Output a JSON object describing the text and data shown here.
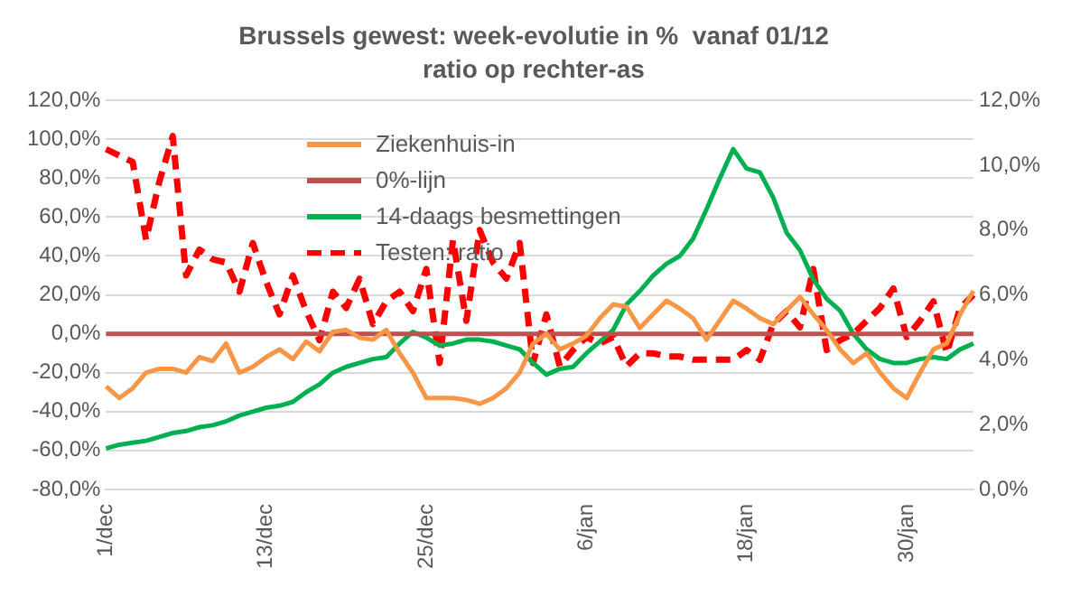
{
  "chart_data": {
    "type": "line",
    "title": "Brussels gewest: week-evolutie in %  vanaf 01/12",
    "subtitle": "ratio op rechter-as",
    "categories": [
      "1/dec",
      null,
      null,
      null,
      null,
      null,
      null,
      null,
      null,
      null,
      null,
      null,
      "13/dec",
      null,
      null,
      null,
      null,
      null,
      null,
      null,
      null,
      null,
      null,
      null,
      "25/dec",
      null,
      null,
      null,
      null,
      null,
      null,
      null,
      null,
      null,
      null,
      null,
      "6/jan",
      null,
      null,
      null,
      null,
      null,
      null,
      null,
      null,
      null,
      null,
      null,
      "18/jan",
      null,
      null,
      null,
      null,
      null,
      null,
      null,
      null,
      null,
      null,
      null,
      "30/jan",
      null,
      null,
      null,
      null,
      null
    ],
    "series": [
      {
        "name": "Ziekenhuis-in",
        "color": "#f79646",
        "line_style": "solid",
        "values": [
          -27,
          -33,
          -28,
          -20,
          -18,
          -18,
          -20,
          -12,
          -14,
          -5,
          -20,
          -17,
          -12,
          -8,
          -13,
          -4,
          -9,
          1,
          2,
          -2,
          -3,
          2,
          -10,
          -20,
          -33,
          -33,
          -33,
          -34,
          -36,
          -33,
          -28,
          -20,
          -5,
          0,
          -8,
          -5,
          -1,
          8,
          15,
          14,
          3,
          10,
          17,
          13,
          8,
          -3,
          7,
          17,
          13,
          8,
          5,
          12,
          19,
          10,
          2,
          -8,
          -15,
          -10,
          -20,
          -28,
          -33,
          -20,
          -8,
          -5,
          10,
          22
        ]
      },
      {
        "name": "0%-lijn",
        "color": "#c0504d",
        "line_style": "solid",
        "values": [
          0,
          0,
          0,
          0,
          0,
          0,
          0,
          0,
          0,
          0,
          0,
          0,
          0,
          0,
          0,
          0,
          0,
          0,
          0,
          0,
          0,
          0,
          0,
          0,
          0,
          0,
          0,
          0,
          0,
          0,
          0,
          0,
          0,
          0,
          0,
          0,
          0,
          0,
          0,
          0,
          0,
          0,
          0,
          0,
          0,
          0,
          0,
          0,
          0,
          0,
          0,
          0,
          0,
          0,
          0,
          0,
          0,
          0,
          0,
          0,
          0,
          0,
          0,
          0,
          0,
          0
        ]
      },
      {
        "name": "14-daags besmettingen",
        "color": "#00b050",
        "line_style": "solid",
        "values": [
          -59,
          -57,
          -56,
          -55,
          -53,
          -51,
          -50,
          -48,
          -47,
          -45,
          -42,
          -40,
          -38,
          -37,
          -35,
          -30,
          -26,
          -20,
          -17,
          -15,
          -13,
          -12,
          -5,
          1,
          -2,
          -6,
          -5,
          -3,
          -3,
          -4,
          -6,
          -8,
          -15,
          -21,
          -18,
          -17,
          -10,
          -4,
          2,
          15,
          22,
          30,
          36,
          40,
          49,
          64,
          80,
          95,
          85,
          83,
          70,
          52,
          43,
          28,
          18,
          12,
          0,
          -8,
          -13,
          -15,
          -15,
          -13,
          -12,
          -13,
          -8,
          -5
        ]
      },
      {
        "name": "Testen: ratio",
        "color": "#ff0000",
        "line_style": "dashed",
        "axis": "y2",
        "values": [
          10.5,
          10.3,
          10.1,
          7.7,
          9.5,
          10.9,
          6.6,
          7.4,
          7.1,
          7.0,
          6.1,
          7.6,
          6.4,
          5.4,
          6.6,
          5.5,
          4.6,
          6.1,
          5.6,
          6.5,
          5.1,
          5.8,
          6.1,
          5.5,
          6.8,
          3.9,
          7.7,
          5.2,
          8.0,
          7.0,
          6.5,
          7.6,
          3.9,
          5.4,
          3.8,
          4.3,
          4.7,
          4.5,
          4.7,
          3.8,
          4.2,
          4.2,
          4.1,
          4.1,
          4.0,
          4.0,
          4.0,
          4.0,
          4.3,
          4.0,
          5.1,
          5.5,
          5.0,
          6.8,
          4.3,
          4.6,
          4.8,
          5.2,
          5.6,
          6.2,
          4.7,
          5.2,
          5.8,
          4.2,
          5.6,
          6.0
        ]
      }
    ],
    "ylim": [
      -80,
      120
    ],
    "yticks": [
      {
        "value": -80,
        "label": "-80,0%"
      },
      {
        "value": -60,
        "label": "-60,0%"
      },
      {
        "value": -40,
        "label": "-40,0%"
      },
      {
        "value": -20,
        "label": "-20,0%"
      },
      {
        "value": 0,
        "label": "0,0%"
      },
      {
        "value": 20,
        "label": "20,0%"
      },
      {
        "value": 40,
        "label": "40,0%"
      },
      {
        "value": 60,
        "label": "60,0%"
      },
      {
        "value": 80,
        "label": "80,0%"
      },
      {
        "value": 100,
        "label": "100,0%"
      },
      {
        "value": 120,
        "label": "120,0%"
      }
    ],
    "y2lim": [
      0,
      12
    ],
    "y2ticks": [
      {
        "value": 0,
        "label": "0,0%"
      },
      {
        "value": 2,
        "label": "2,0%"
      },
      {
        "value": 4,
        "label": "4,0%"
      },
      {
        "value": 6,
        "label": "6,0%"
      },
      {
        "value": 8,
        "label": "8,0%"
      },
      {
        "value": 10,
        "label": "10,0%"
      },
      {
        "value": 12,
        "label": "12,0%"
      }
    ],
    "grid": "y",
    "legend": "top",
    "marker": "none"
  }
}
